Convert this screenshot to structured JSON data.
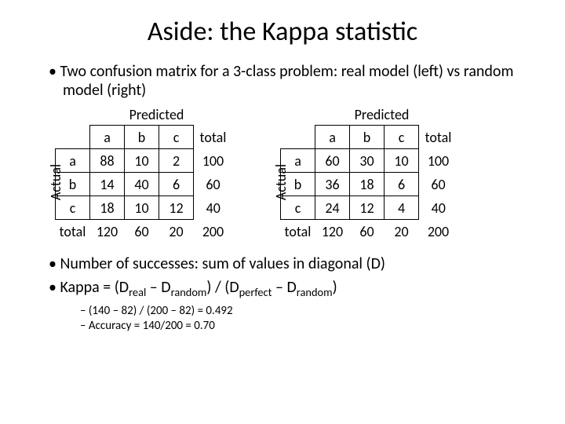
{
  "title": "Aside: the Kappa statistic",
  "intro_bullet": "Two confusion matrix for a 3-class problem: real model (left) vs random model (right)",
  "labels": {
    "predicted": "Predicted",
    "actual": "Actual",
    "total": "total"
  },
  "classes": [
    "a",
    "b",
    "c"
  ],
  "left_matrix": {
    "rows": [
      {
        "label": "a",
        "cells": [
          88,
          10,
          2
        ],
        "total": 100
      },
      {
        "label": "b",
        "cells": [
          14,
          40,
          6
        ],
        "total": 60
      },
      {
        "label": "c",
        "cells": [
          18,
          10,
          12
        ],
        "total": 40
      }
    ],
    "col_totals": [
      120,
      60,
      20
    ],
    "grand_total": 200
  },
  "right_matrix": {
    "rows": [
      {
        "label": "a",
        "cells": [
          60,
          30,
          10
        ],
        "total": 100
      },
      {
        "label": "b",
        "cells": [
          36,
          18,
          6
        ],
        "total": 60
      },
      {
        "label": "c",
        "cells": [
          24,
          12,
          4
        ],
        "total": 40
      }
    ],
    "col_totals": [
      120,
      60,
      20
    ],
    "grand_total": 200
  },
  "bottom": {
    "b1": "Number of successes: sum of values in diagonal (D)",
    "kappa_prefix": "Kappa = (D",
    "kappa_mid1": " – D",
    "kappa_mid2": ") / (D",
    "kappa_mid3": " – D",
    "kappa_suffix": ")",
    "sub_real": "real",
    "sub_random": "random",
    "sub_perfect": "perfect",
    "sub1": "(140 – 82) / (200 – 82) = 0.492",
    "sub2": "Accuracy = 140/200 = 0.70"
  },
  "style": {
    "background": "#ffffff",
    "text_color": "#000000",
    "border_color": "#000000",
    "title_fontsize": 34,
    "body_fontsize": 20,
    "table_fontsize": 18
  }
}
